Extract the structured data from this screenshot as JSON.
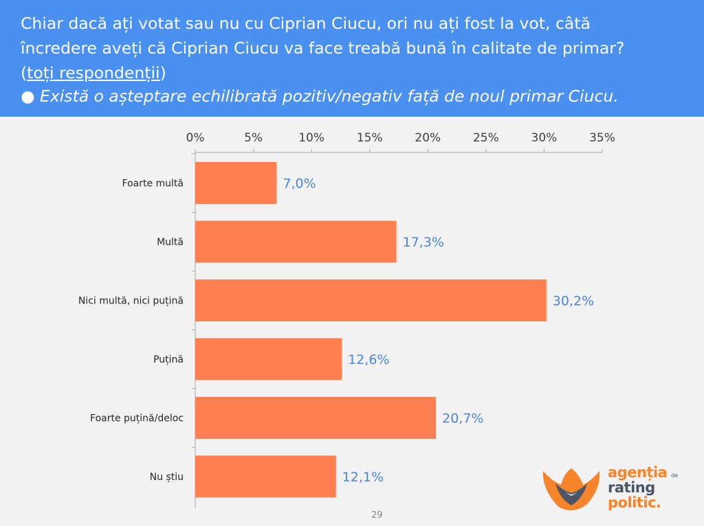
{
  "header": {
    "line1": "Chiar dacă ați votat sau nu cu Ciprian Ciucu, ori nu ați fost la vot, câtă",
    "line2": "încredere aveți că Ciprian Ciucu va face treabă bună în calitate de primar?",
    "line3_paren_open": "(",
    "line3_link": "toți respondenții",
    "line3_paren_close": ")",
    "line4": "● Există o așteptare echilibrată pozitiv/negativ față de noul primar Ciucu."
  },
  "chart_data": {
    "type": "bar",
    "orientation": "horizontal",
    "categories": [
      "Foarte multă",
      "Multă",
      "Nici multă, nici puțină",
      "Puțină",
      "Foarte puțină/deloc",
      "Nu știu"
    ],
    "values": [
      7.0,
      17.3,
      30.2,
      12.6,
      20.7,
      12.1
    ],
    "value_labels": [
      "7,0%",
      "17,3%",
      "30,2%",
      "12,6%",
      "20,7%",
      "12,1%"
    ],
    "ticks": [
      0,
      5,
      10,
      15,
      20,
      25,
      30,
      35
    ],
    "tick_labels": [
      "0%",
      "5%",
      "10%",
      "15%",
      "20%",
      "25%",
      "30%",
      "35%"
    ],
    "xlim": [
      0,
      35
    ],
    "axis_position": "top",
    "grid": false,
    "bar_color": "#ff7f50",
    "label_color": "#4a86d8"
  },
  "page_number": "29",
  "logo": {
    "line1": "agenția",
    "small": "de",
    "line2": "rating",
    "line3": "politic.",
    "colors": {
      "orange": "#f5842b",
      "dark": "#4b5567"
    }
  }
}
